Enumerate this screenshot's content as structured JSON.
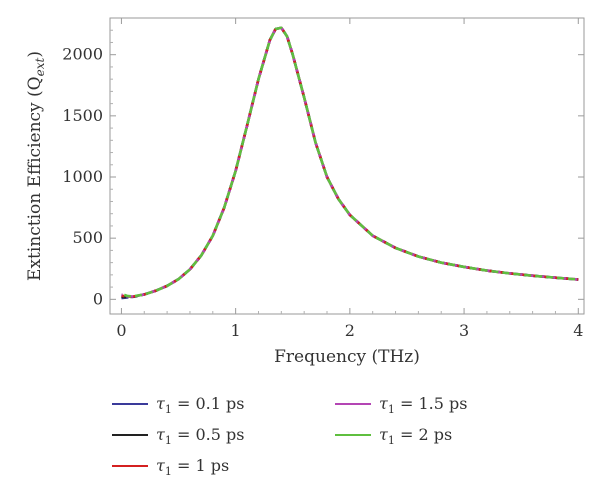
{
  "chart_data": {
    "type": "line",
    "title": "",
    "xlabel": "Frequency (THz)",
    "ylabel": {
      "main": "Extinction Efficiency (Q",
      "sub": "ext",
      "close": ")"
    },
    "xlim": [
      -0.1,
      4.05
    ],
    "ylim": [
      -120,
      2300
    ],
    "xticks": [
      0,
      1,
      2,
      3,
      4
    ],
    "xtick_labels": [
      "0",
      "1",
      "2",
      "3",
      "4"
    ],
    "yticks": [
      0,
      500,
      1000,
      1500,
      2000
    ],
    "ytick_labels": [
      "0",
      "500",
      "1000",
      "1500",
      "2000"
    ],
    "grid": false,
    "legend_position": "bottom",
    "x": [
      0,
      0.05,
      0.1,
      0.2,
      0.3,
      0.4,
      0.5,
      0.6,
      0.7,
      0.8,
      0.9,
      1.0,
      1.1,
      1.2,
      1.3,
      1.35,
      1.4,
      1.45,
      1.5,
      1.6,
      1.7,
      1.8,
      1.9,
      2.0,
      2.2,
      2.4,
      2.6,
      2.8,
      3.0,
      3.2,
      3.4,
      3.6,
      3.8,
      4.0
    ],
    "series": [
      {
        "name": "τ1 = 0.1 ps",
        "color": "#3a3a9a",
        "values": [
          10,
          15,
          20,
          40,
          70,
          110,
          165,
          245,
          360,
          520,
          750,
          1050,
          1420,
          1800,
          2120,
          2210,
          2220,
          2150,
          2000,
          1650,
          1280,
          1000,
          820,
          690,
          520,
          420,
          350,
          300,
          265,
          235,
          212,
          193,
          177,
          162
        ]
      },
      {
        "name": "τ1 = 0.5 ps",
        "color": "#222222",
        "values": [
          20,
          18,
          20,
          40,
          70,
          110,
          165,
          245,
          360,
          520,
          750,
          1050,
          1420,
          1800,
          2120,
          2210,
          2220,
          2150,
          2000,
          1650,
          1280,
          1000,
          820,
          690,
          520,
          420,
          350,
          300,
          265,
          235,
          212,
          193,
          177,
          162
        ]
      },
      {
        "name": "τ1 = 1 ps",
        "color": "#d42020",
        "values": [
          30,
          22,
          22,
          40,
          70,
          110,
          165,
          245,
          360,
          520,
          750,
          1050,
          1420,
          1800,
          2120,
          2210,
          2220,
          2150,
          2000,
          1650,
          1280,
          1000,
          820,
          690,
          520,
          420,
          350,
          300,
          265,
          235,
          212,
          193,
          177,
          162
        ]
      },
      {
        "name": "τ1 = 1.5 ps",
        "color": "#b445b4",
        "values": [
          38,
          25,
          23,
          40,
          70,
          110,
          165,
          245,
          360,
          520,
          750,
          1050,
          1420,
          1800,
          2120,
          2210,
          2220,
          2150,
          2000,
          1650,
          1280,
          1000,
          820,
          690,
          520,
          420,
          350,
          300,
          265,
          235,
          212,
          193,
          177,
          162
        ]
      },
      {
        "name": "τ1 = 2 ps",
        "color": "#5fbf3f",
        "values": [
          45,
          28,
          24,
          40,
          70,
          110,
          165,
          245,
          360,
          520,
          750,
          1050,
          1420,
          1800,
          2120,
          2210,
          2220,
          2150,
          2000,
          1650,
          1280,
          1000,
          820,
          690,
          520,
          420,
          350,
          300,
          265,
          235,
          212,
          193,
          177,
          162
        ]
      }
    ],
    "legend": [
      {
        "symbol": "τ",
        "sub": "1",
        "text": " = 0.1 ps",
        "color": "#3a3a9a"
      },
      {
        "symbol": "τ",
        "sub": "1",
        "text": " = 0.5 ps",
        "color": "#222222"
      },
      {
        "symbol": "τ",
        "sub": "1",
        "text": " = 1 ps",
        "color": "#d42020"
      },
      {
        "symbol": "τ",
        "sub": "1",
        "text": " = 1.5 ps",
        "color": "#b445b4"
      },
      {
        "symbol": "τ",
        "sub": "1",
        "text": " = 2 ps",
        "color": "#5fbf3f"
      }
    ]
  }
}
